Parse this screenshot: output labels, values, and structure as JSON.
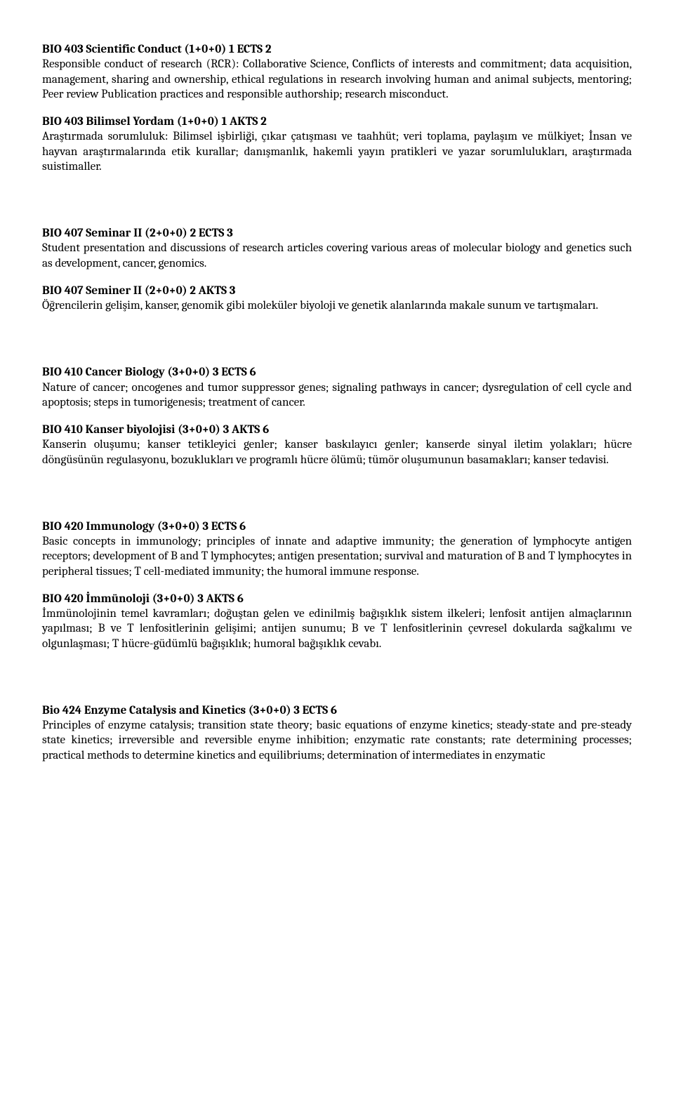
{
  "courses": [
    {
      "title": "BIO 403 Scientific Conduct (1+0+0) 1 ECTS 2",
      "body": "Responsible conduct of research (RCR): Collaborative Science, Conflicts of interests and commitment; data acquisition, management, sharing and ownership, ethical regulations in research involving human and animal subjects, mentoring; Peer review Publication practices and responsible authorship; research misconduct."
    },
    {
      "title": "BIO 403 Bilimsel Yordam  (1+0+0) 1 AKTS 2",
      "body": "Araştırmada sorumluluk: Bilimsel işbirliği, çıkar çatışması ve taahhüt; veri toplama, paylaşım ve mülkiyet; İnsan ve hayvan araştırmalarında etik kurallar; danışmanlık, hakemli yayın pratikleri ve yazar sorumlulukları, araştırmada suistimaller."
    },
    {
      "title": "BIO 407 Seminar II (2+0+0) 2 ECTS 3",
      "body": "Student presentation and discussions of research articles covering various areas of molecular biology and genetics such as development, cancer, genomics."
    },
    {
      "title": "BIO 407 Seminer II (2+0+0) 2 AKTS 3",
      "body": "Öğrencilerin gelişim, kanser, genomik gibi moleküler biyoloji ve genetik alanlarında makale sunum ve tartışmaları."
    },
    {
      "title": "BIO 410 Cancer Biology (3+0+0) 3 ECTS 6",
      "body": "Nature of cancer; oncogenes and tumor suppressor genes; signaling pathways in cancer; dysregulation of cell cycle and apoptosis; steps in tumorigenesis; treatment of cancer."
    },
    {
      "title": "BIO 410 Kanser biyolojisi (3+0+0) 3 AKTS 6",
      "body": "Kanserin oluşumu; kanser tetikleyici genler; kanser baskılayıcı genler; kanserde sinyal iletim yolakları; hücre döngüsünün regulasyonu, bozuklukları ve programlı hücre ölümü; tümör oluşumunun basamakları; kanser tedavisi."
    },
    {
      "title": "BIO 420 Immunology (3+0+0) 3 ECTS 6",
      "body": "Basic concepts in immunology; principles of innate and adaptive immunity; the generation of lymphocyte antigen receptors; development of B and T lymphocytes; antigen presentation; survival and maturation of B and T lymphocytes in peripheral tissues; T cell-mediated immunity; the humoral immune response."
    },
    {
      "title": "BIO 420 İmmünoloji (3+0+0) 3 AKTS 6",
      "body": "İmmünolojinin temel kavramları; doğuştan gelen ve edinilmiş bağışıklık sistem ilkeleri; lenfosit antijen almaçlarının yapılması; B ve T lenfositlerinin gelişimi; antijen sunumu; B ve T lenfositlerinin çevresel dokularda sağkalımı ve olgunlaşması; T hücre-güdümlü bağışıklık; humoral bağışıklık cevabı."
    },
    {
      "title": "Bio 424 Enzyme Catalysis and Kinetics (3+0+0) 3 ECTS 6",
      "body": "Principles of enzyme catalysis; transition state theory; basic equations of enzyme kinetics; steady-state and pre-steady state kinetics; irreversible and reversible enyme inhibition; enzymatic rate constants; rate determining processes;  practical methods to determine kinetics and equilibriums;  determination of intermediates in enzymatic"
    }
  ],
  "gaps_after": [
    false,
    true,
    false,
    true,
    false,
    true,
    false,
    true,
    false
  ]
}
